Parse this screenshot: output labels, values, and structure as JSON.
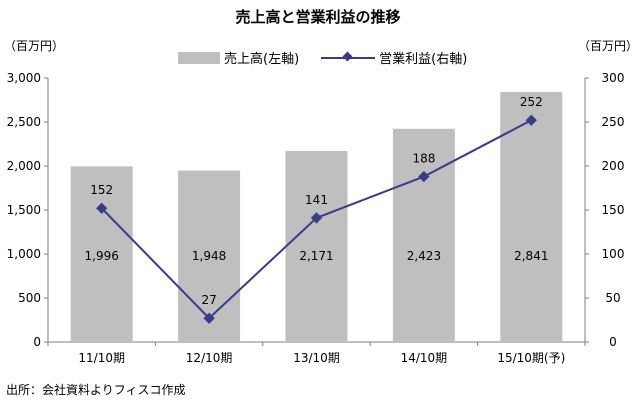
{
  "chart_data": {
    "type": "bar+line",
    "title": "売上高と営業利益の推移",
    "left_unit": "（百万円）",
    "right_unit": "（百万円）",
    "categories": [
      "11/10期",
      "12/10期",
      "13/10期",
      "14/10期",
      "15/10期(予)"
    ],
    "series": [
      {
        "name": "売上高(左軸)",
        "type": "bar",
        "axis": "left",
        "color": "#bfbfbf",
        "values": [
          1996,
          1948,
          2171,
          2423,
          2841
        ],
        "labels": [
          "1,996",
          "1,948",
          "2,171",
          "2,423",
          "2,841"
        ]
      },
      {
        "name": "営業利益(右軸)",
        "type": "line",
        "axis": "right",
        "color": "#3b3b8c",
        "values": [
          152,
          27,
          141,
          188,
          252
        ],
        "labels": [
          "152",
          "27",
          "141",
          "188",
          "252"
        ]
      }
    ],
    "left_axis": {
      "min": 0,
      "max": 3000,
      "ticks": [
        "0",
        "500",
        "1,000",
        "1,500",
        "2,000",
        "2,500",
        "3,000"
      ]
    },
    "right_axis": {
      "min": 0,
      "max": 300,
      "ticks": [
        "0",
        "50",
        "100",
        "150",
        "200",
        "250",
        "300"
      ]
    },
    "grid": false,
    "legend_position": "top-center"
  },
  "source": "出所：会社資料よりフィスコ作成"
}
